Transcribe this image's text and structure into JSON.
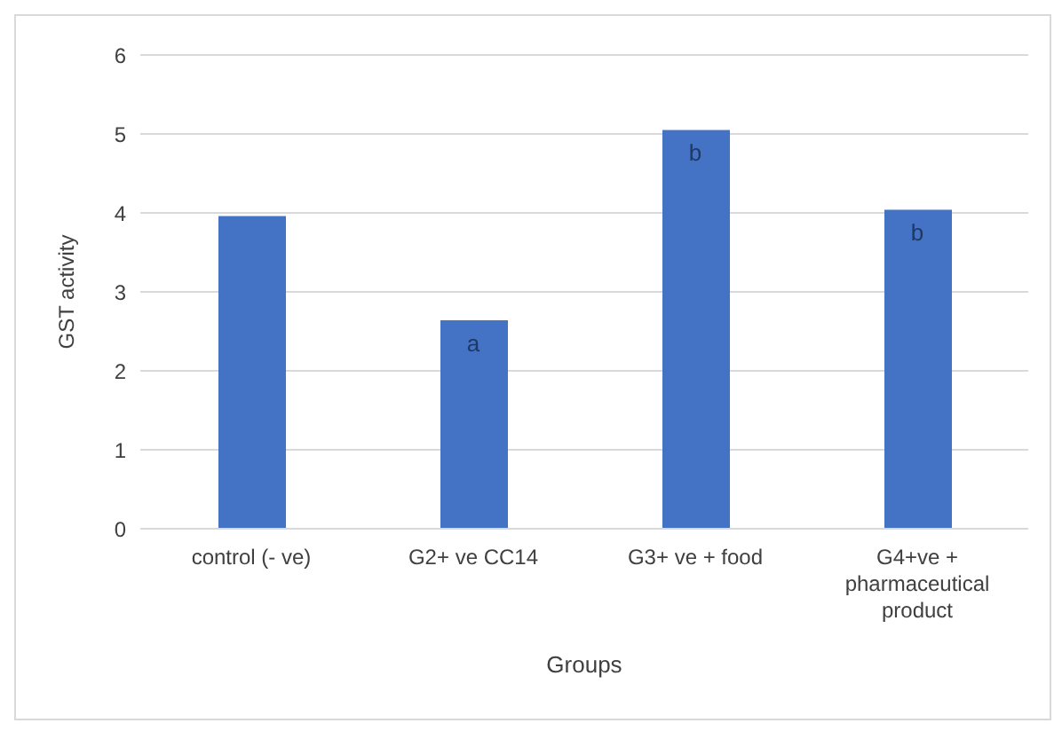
{
  "chart_data": {
    "type": "bar",
    "xlabel": "Groups",
    "ylabel": "GST activity",
    "categories": [
      "control (- ve)",
      "G2+ ve CC14",
      "G3+ ve + food",
      "G4+ve + pharmaceutical product"
    ],
    "values": [
      3.96,
      2.64,
      5.05,
      4.04
    ],
    "color": "#4472c4",
    "ylim": [
      0,
      6
    ],
    "yticks": [
      0,
      1,
      2,
      3,
      4,
      5,
      6
    ],
    "grid": "y",
    "annotations": [
      {
        "text": "a",
        "x": "G2+ ve CC14",
        "y": 2.64
      },
      {
        "text": "b",
        "x": "G3+ ve + food",
        "y": 5.05
      },
      {
        "text": "b",
        "x": "G4+ve + pharmaceutical product",
        "y": 4.04
      }
    ]
  }
}
